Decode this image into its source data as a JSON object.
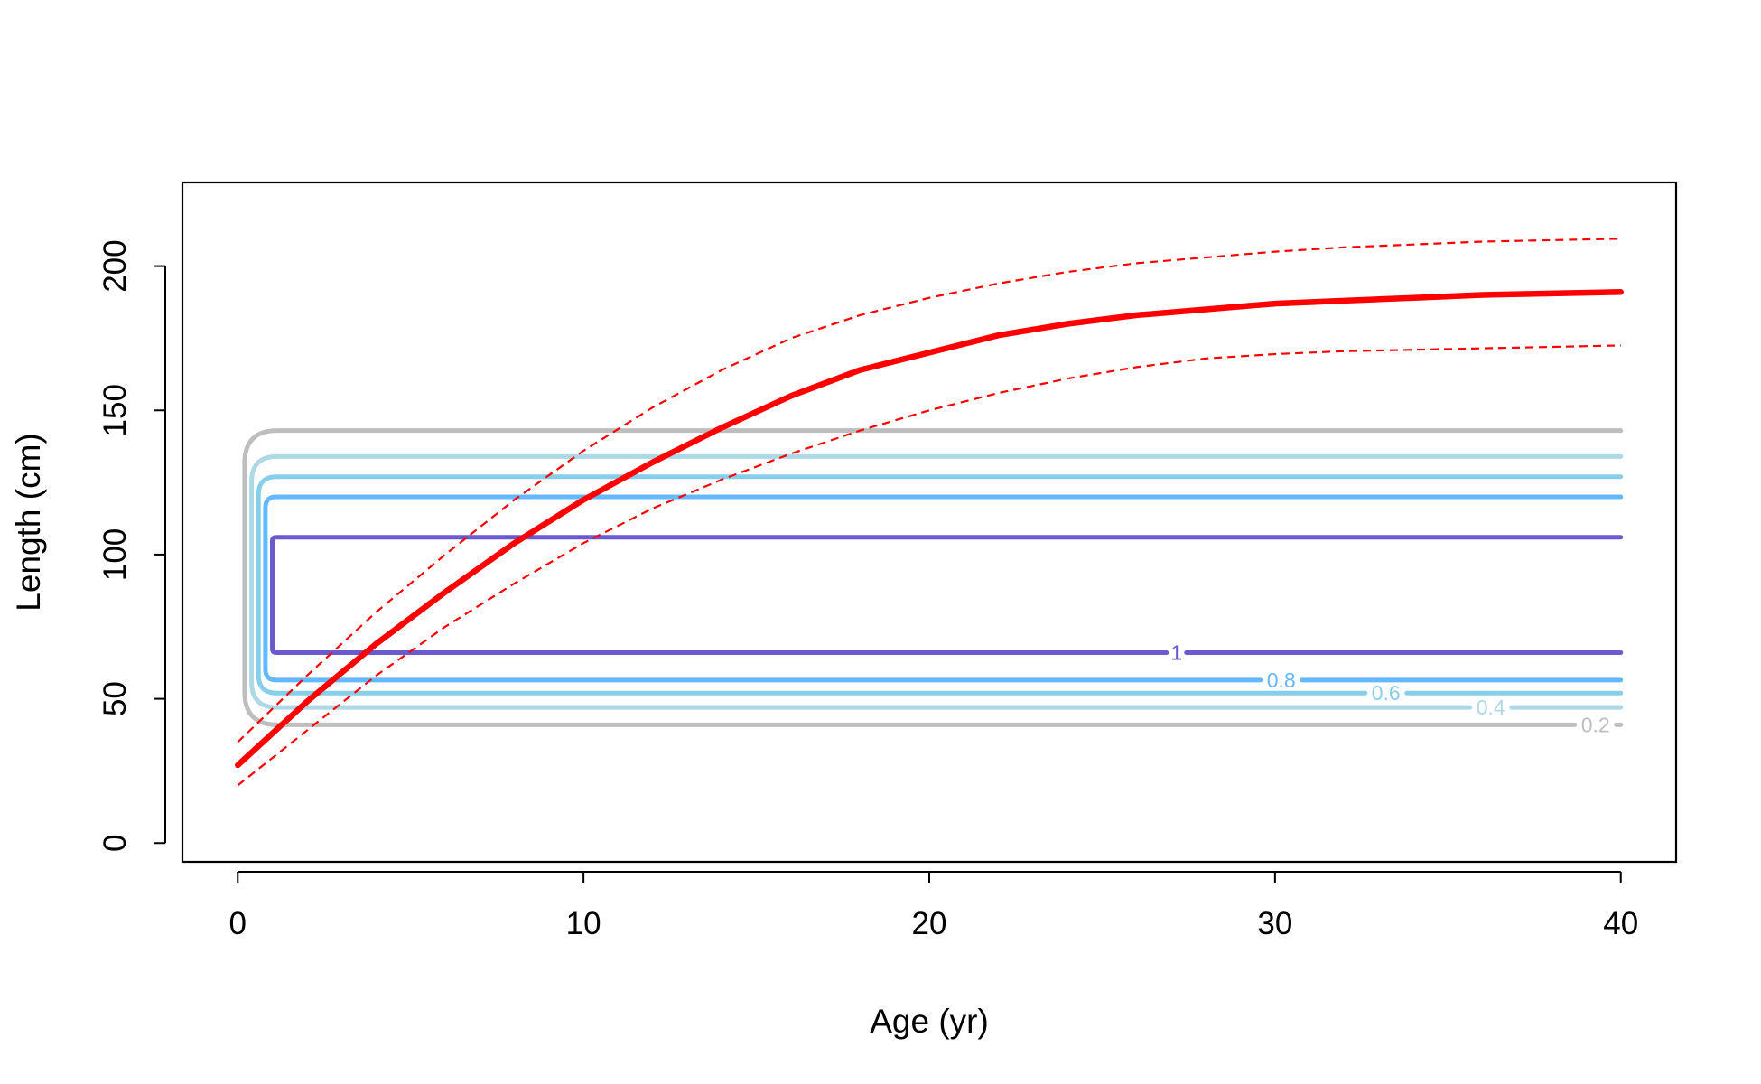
{
  "chart_data": {
    "type": "line",
    "title": "",
    "xlabel": "Age (yr)",
    "ylabel": "Length (cm)",
    "xlim": [
      -1.6,
      41.6
    ],
    "ylim": [
      -6.5,
      229
    ],
    "x_ticks": [
      0,
      10,
      20,
      30,
      40
    ],
    "y_ticks": [
      0,
      50,
      100,
      150,
      200
    ],
    "grid": false,
    "legend": "none",
    "growth_curve": {
      "color": "#ff0000",
      "x": [
        0,
        2,
        4,
        6,
        8,
        10,
        12,
        14,
        16,
        18,
        20,
        22,
        24,
        26,
        28,
        30,
        32,
        34,
        36,
        38,
        40
      ],
      "mean": [
        27,
        49,
        69,
        87,
        104,
        119,
        132,
        144,
        155,
        164,
        170,
        176,
        180,
        183,
        185,
        187,
        188,
        189,
        190,
        190.5,
        191
      ],
      "upper": [
        35,
        58,
        80,
        100,
        119,
        136,
        151,
        164,
        175,
        183,
        189,
        194,
        198,
        201,
        203,
        205,
        206.5,
        207.5,
        208.5,
        209,
        209.5
      ],
      "lower": [
        20,
        39,
        58,
        75,
        90,
        104,
        116,
        126,
        135,
        143,
        150,
        156,
        161,
        165,
        168,
        169.5,
        170.5,
        171,
        171.5,
        172,
        172.5
      ]
    },
    "selectivity_contours": [
      {
        "level": 1,
        "label": "1",
        "color": "#6a5acd",
        "lower": 66,
        "upper": 106
      },
      {
        "level": 0.8,
        "label": "0.8",
        "color": "#63b8ff",
        "lower": 56.5,
        "upper": 120
      },
      {
        "level": 0.6,
        "label": "0.6",
        "color": "#87ceeb",
        "lower": 52,
        "upper": 127
      },
      {
        "level": 0.4,
        "label": "0.4",
        "color": "#add8e6",
        "lower": 47,
        "upper": 134
      },
      {
        "level": 0.2,
        "label": "0.2",
        "color": "#bebebe",
        "lower": 41,
        "upper": 143
      }
    ]
  }
}
